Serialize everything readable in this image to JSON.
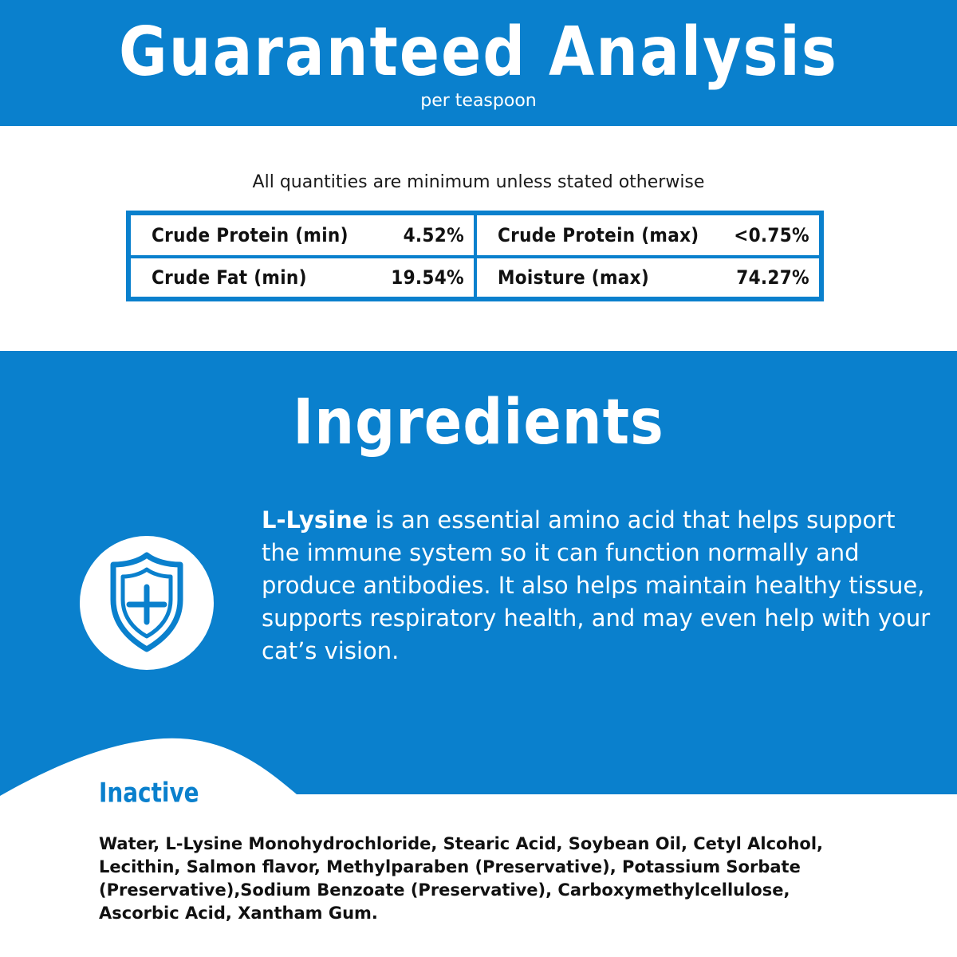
{
  "analysis": {
    "title": "Guaranteed Analysis",
    "subtitle": "per teaspoon",
    "note": "All quantities are minimum unless stated otherwise",
    "rows": [
      {
        "left": {
          "label": "Crude Protein (min)",
          "value": "4.52%"
        },
        "right": {
          "label": "Crude Protein (max)",
          "value": "<0.75%"
        }
      },
      {
        "left": {
          "label": "Crude Fat (min)",
          "value": "19.54%"
        },
        "right": {
          "label": "Moisture (max)",
          "value": "74.27%"
        }
      }
    ]
  },
  "ingredients": {
    "title": "Ingredients",
    "icon": "shield-plus-icon",
    "lysine_name": "L-Lysine",
    "lysine_text": " is an essential amino acid that helps support the immune system so it can function normally and produce antibodies. It also helps maintain healthy tissue, supports respiratory health, and may even help with your cat’s vision."
  },
  "inactive": {
    "title": "Inactive",
    "text": "Water, L-Lysine Monohydrochloride, Stearic Acid, Soybean Oil, Cetyl Alcohol, Lecithin, Salmon flavor, Methylparaben (Preservative), Potassium Sorbate (Preservative),Sodium Benzoate (Preservative), Carboxymethylcellulose, Ascorbic Acid, Xantham Gum."
  },
  "colors": {
    "brand_blue": "#0a80cd",
    "text_dark": "#111111",
    "white": "#ffffff"
  }
}
